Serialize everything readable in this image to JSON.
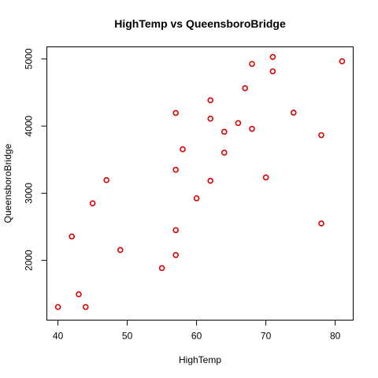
{
  "chart_data": {
    "type": "scatter",
    "title": "HighTemp vs QueensboroBridge",
    "xlabel": "HighTemp",
    "ylabel": "QueensboroBridge",
    "xlim": [
      38.4,
      82.6
    ],
    "ylim": [
      1110,
      5180
    ],
    "xticks": [
      40,
      50,
      60,
      70,
      80
    ],
    "yticks": [
      2000,
      3000,
      4000,
      5000
    ],
    "point_color": "#dd0000",
    "point_shape": "open-circle",
    "grid": false,
    "legend": "none",
    "points": [
      {
        "x": 40,
        "y": 1305
      },
      {
        "x": 42,
        "y": 2355
      },
      {
        "x": 43,
        "y": 1495
      },
      {
        "x": 44,
        "y": 1305
      },
      {
        "x": 45,
        "y": 2850
      },
      {
        "x": 47,
        "y": 3195
      },
      {
        "x": 49,
        "y": 2155
      },
      {
        "x": 55,
        "y": 1885
      },
      {
        "x": 57,
        "y": 2080
      },
      {
        "x": 57,
        "y": 2450
      },
      {
        "x": 57,
        "y": 3350
      },
      {
        "x": 57,
        "y": 4195
      },
      {
        "x": 58,
        "y": 3655
      },
      {
        "x": 60,
        "y": 2925
      },
      {
        "x": 62,
        "y": 3185
      },
      {
        "x": 62,
        "y": 4110
      },
      {
        "x": 62,
        "y": 4385
      },
      {
        "x": 64,
        "y": 3605
      },
      {
        "x": 64,
        "y": 3915
      },
      {
        "x": 66,
        "y": 4045
      },
      {
        "x": 67,
        "y": 4565
      },
      {
        "x": 68,
        "y": 3960
      },
      {
        "x": 68,
        "y": 4925
      },
      {
        "x": 70,
        "y": 3235
      },
      {
        "x": 71,
        "y": 4815
      },
      {
        "x": 71,
        "y": 5030
      },
      {
        "x": 74,
        "y": 4200
      },
      {
        "x": 78,
        "y": 2550
      },
      {
        "x": 78,
        "y": 3865
      },
      {
        "x": 81,
        "y": 4965
      }
    ]
  }
}
